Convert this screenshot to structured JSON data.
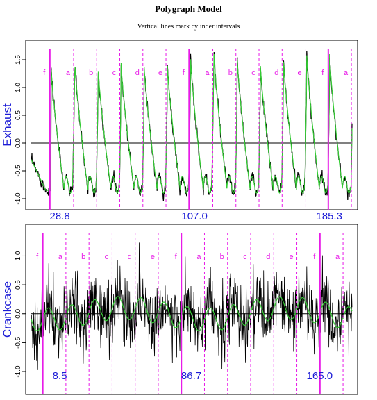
{
  "title": "Polygraph Model",
  "subtitle": "Vertical lines mark cylinder intervals",
  "colors": {
    "raw": "#000000",
    "fit": "#33cc33",
    "cylinder": "#e81be8",
    "label": "#1c1cd6",
    "axis": "#000000"
  },
  "chart_data": [
    {
      "type": "line",
      "ylabel": "Exhaust",
      "ylim": [
        -1.1,
        1.75
      ],
      "yticks": [
        -1.0,
        -0.5,
        0.0,
        0.5,
        1.0,
        1.5
      ],
      "xlim": [
        0,
        100
      ],
      "zero_line": true,
      "cylinder_lines": [
        {
          "x": 5.8,
          "label": "f",
          "solid": true
        },
        {
          "x": 13.2,
          "label": "a",
          "solid": false
        },
        {
          "x": 20.4,
          "label": "b",
          "solid": false
        },
        {
          "x": 27.6,
          "label": "c",
          "solid": false
        },
        {
          "x": 34.8,
          "label": "d",
          "solid": false
        },
        {
          "x": 42.0,
          "label": "e",
          "solid": false
        },
        {
          "x": 49.2,
          "label": "f",
          "solid": true
        },
        {
          "x": 56.6,
          "label": "a",
          "solid": false
        },
        {
          "x": 63.8,
          "label": "b",
          "solid": false
        },
        {
          "x": 71.0,
          "label": "c",
          "solid": false
        },
        {
          "x": 78.2,
          "label": "d",
          "solid": false
        },
        {
          "x": 85.4,
          "label": "e",
          "solid": false
        },
        {
          "x": 92.6,
          "label": "f",
          "solid": true
        },
        {
          "x": 99.8,
          "label": "a",
          "solid": false
        }
      ],
      "time_labels": [
        {
          "x": 5.0,
          "text": "28.8"
        },
        {
          "x": 47.0,
          "text": "107.0"
        },
        {
          "x": 89.0,
          "text": "185.3"
        }
      ],
      "peak_values": [
        1.35,
        1.45,
        1.4,
        1.45,
        1.4,
        1.45,
        1.6,
        1.6,
        1.55,
        1.45,
        1.55,
        1.7,
        1.6,
        1.6
      ],
      "trough_value": -0.85,
      "series": [
        {
          "name": "",
          "role": "raw"
        },
        {
          "name": "",
          "role": "fit"
        }
      ]
    },
    {
      "type": "line",
      "ylabel": "Crankcase",
      "ylim": [
        -1.3,
        1.45
      ],
      "yticks": [
        -1.0,
        -0.5,
        0.0,
        0.5,
        1.0
      ],
      "xlim": [
        0,
        100
      ],
      "zero_line": true,
      "cylinder_lines": [
        {
          "x": 3.6,
          "label": "f",
          "solid": true
        },
        {
          "x": 10.8,
          "label": "a",
          "solid": false
        },
        {
          "x": 18.0,
          "label": "b",
          "solid": false
        },
        {
          "x": 25.2,
          "label": "c",
          "solid": false
        },
        {
          "x": 32.4,
          "label": "d",
          "solid": false
        },
        {
          "x": 39.6,
          "label": "e",
          "solid": false
        },
        {
          "x": 46.8,
          "label": "f",
          "solid": true
        },
        {
          "x": 54.0,
          "label": "a",
          "solid": false
        },
        {
          "x": 61.2,
          "label": "b",
          "solid": false
        },
        {
          "x": 68.4,
          "label": "c",
          "solid": false
        },
        {
          "x": 75.6,
          "label": "d",
          "solid": false
        },
        {
          "x": 82.8,
          "label": "e",
          "solid": false
        },
        {
          "x": 90.0,
          "label": "f",
          "solid": true
        },
        {
          "x": 97.2,
          "label": "a",
          "solid": false
        }
      ],
      "time_labels": [
        {
          "x": 5.0,
          "text": "8.5"
        },
        {
          "x": 46.0,
          "text": "86.7"
        },
        {
          "x": 86.0,
          "text": "165.0"
        }
      ],
      "noise_amplitude": 0.55,
      "fit_amplitude": 0.2,
      "series": [
        {
          "name": "",
          "role": "raw"
        },
        {
          "name": "",
          "role": "fit"
        }
      ]
    }
  ]
}
